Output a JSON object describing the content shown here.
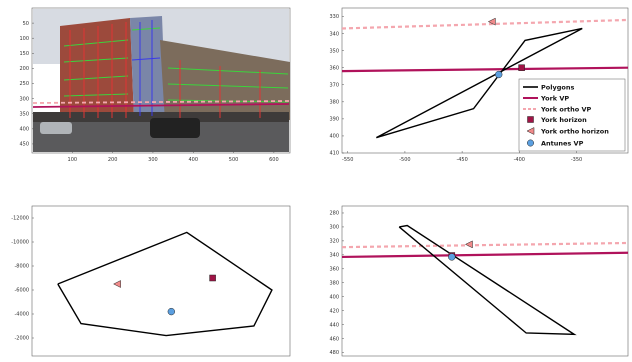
{
  "colors": {
    "york_vp": "#b0125b",
    "york_ortho_vp": "#f4a6ae",
    "york_horizon": "#a01446",
    "york_ortho_horizon": "#f08a8a",
    "antunes_vp": "#5b9fe0",
    "polygon": "#000000",
    "axes": "#555555",
    "grid_bg": "#ffffff"
  },
  "chart_data": [
    {
      "type": "image",
      "panel": "top-left",
      "description_free": true,
      "xticks": [
        "100",
        "200",
        "300",
        "400",
        "500",
        "600"
      ],
      "yticks": [
        "50",
        "100",
        "150",
        "200",
        "250",
        "300",
        "350",
        "400",
        "450"
      ],
      "xlim": [
        0,
        640
      ],
      "ylim": [
        480,
        0
      ],
      "york_vp_y": [
        353,
        339
      ],
      "york_ortho_vp_y": [
        343,
        329
      ],
      "icons": [
        "building-photo"
      ]
    },
    {
      "type": "line",
      "panel": "top-right",
      "xticks": [
        "-550",
        "-500",
        "-450",
        "-400",
        "-350"
      ],
      "yticks": [
        "330",
        "340",
        "350",
        "360",
        "370",
        "380",
        "390",
        "400",
        "410"
      ],
      "xlim": [
        -555,
        -305
      ],
      "ylim": [
        410,
        325
      ],
      "polygon": [
        [
          -525,
          401
        ],
        [
          -440,
          384
        ],
        [
          -395,
          344
        ],
        [
          -345,
          337
        ],
        [
          -525,
          401
        ]
      ],
      "york_vp": {
        "x": [
          -555,
          -305
        ],
        "y": [
          362,
          360
        ]
      },
      "york_ortho_vp": {
        "x": [
          -555,
          -305
        ],
        "y": [
          337,
          332
        ]
      },
      "york_horizon": {
        "x": -398,
        "y": 360
      },
      "york_ortho_horizon": {
        "x": -424,
        "y": 333
      },
      "antunes_vp": {
        "x": -418,
        "y": 364
      },
      "legend": {
        "placement": "right",
        "entries": [
          "Polygons",
          "York VP",
          "York ortho VP",
          "York horizon",
          "York ortho horizon",
          "Antunes VP"
        ]
      }
    },
    {
      "type": "line",
      "panel": "bottom-left",
      "xticks": [],
      "yticks": [
        "-12000",
        "-10000",
        "-8000",
        "-6000",
        "-4000",
        "-2000"
      ],
      "xlim": [
        0,
        10
      ],
      "ylim": [
        -500,
        -13000
      ],
      "polygon": [
        [
          1.0,
          -6500
        ],
        [
          6.0,
          -10800
        ],
        [
          9.3,
          -6000
        ],
        [
          8.6,
          -3000
        ],
        [
          5.2,
          -2200
        ],
        [
          1.9,
          -3200
        ],
        [
          1.0,
          -6500
        ]
      ],
      "york_horizon": {
        "x": 7.0,
        "y": -7000
      },
      "york_ortho_horizon": {
        "x": 3.3,
        "y": -6500
      },
      "antunes_vp": {
        "x": 5.4,
        "y": -4200
      }
    },
    {
      "type": "line",
      "panel": "bottom-right",
      "xticks": [],
      "yticks": [
        "280",
        "300",
        "320",
        "340",
        "360",
        "380",
        "400",
        "420",
        "440",
        "460",
        "480"
      ],
      "xlim": [
        -555,
        -305
      ],
      "ylim": [
        485,
        270
      ],
      "polygons": [
        [
          [
            -505,
            300
          ],
          [
            -498,
            298
          ],
          [
            -352,
            454
          ],
          [
            -394,
            452
          ],
          [
            -505,
            300
          ]
        ]
      ],
      "york_vp": {
        "x": [
          -555,
          -305
        ],
        "y": [
          343,
          337
        ]
      },
      "york_ortho_vp": {
        "x": [
          -555,
          -305
        ],
        "y": [
          329,
          323
        ]
      },
      "york_horizon": {
        "x": -459,
        "y": 341
      },
      "york_ortho_horizon": {
        "x": -444,
        "y": 325
      },
      "antunes_vp": {
        "x": -459,
        "y": 343
      }
    }
  ]
}
